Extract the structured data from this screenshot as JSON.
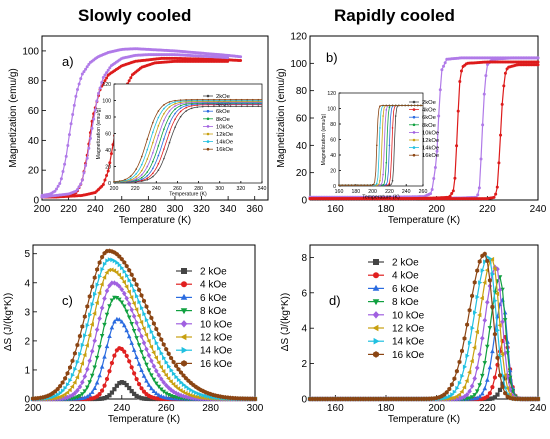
{
  "column_titles": {
    "left": "Slowly cooled",
    "right": "Rapidly cooled"
  },
  "legend_markers": [
    "square",
    "circle",
    "triangle-up",
    "triangle-down",
    "diamond",
    "triangle-left",
    "triangle-right",
    "hexagon"
  ],
  "chart_data": [
    {
      "panel_label": "a)",
      "type": "line",
      "xlabel": "Temperature (K)",
      "ylabel": "Magnetization (emu/g)",
      "xlim": [
        200,
        370
      ],
      "ylim": [
        0,
        110
      ],
      "xticks": [
        200,
        220,
        240,
        260,
        280,
        300,
        320,
        340,
        360
      ],
      "yticks": [
        0,
        20,
        40,
        60,
        80,
        100
      ],
      "grid": false,
      "series": [
        {
          "color": "#dd1b1b",
          "marker": "circle",
          "x": [
            200,
            210,
            220,
            226,
            230,
            234,
            238,
            244,
            250,
            260,
            270,
            280,
            290,
            300,
            320,
            340,
            350
          ],
          "y": [
            2,
            2.5,
            3,
            5,
            12,
            30,
            55,
            75,
            84,
            90,
            93,
            94,
            95,
            95,
            94.5,
            94,
            93.5
          ]
        },
        {
          "color": "#dd1b1b",
          "marker": "circle",
          "x": [
            200,
            210,
            220,
            230,
            240,
            246,
            250,
            254,
            258,
            262,
            268,
            275,
            285,
            300,
            320,
            340
          ],
          "y": [
            2,
            2,
            2.5,
            3,
            5,
            10,
            20,
            40,
            60,
            74,
            84,
            89,
            92,
            93,
            93,
            93
          ]
        },
        {
          "color": "#b07ae8",
          "marker": "circle",
          "x": [
            200,
            206,
            210,
            214,
            218,
            222,
            226,
            230,
            236,
            242,
            250,
            260,
            270,
            280,
            300,
            320,
            340,
            350
          ],
          "y": [
            3,
            4,
            6,
            12,
            28,
            52,
            72,
            84,
            92,
            96,
            99,
            101,
            101.5,
            101,
            100,
            98.5,
            97,
            96
          ]
        },
        {
          "color": "#b07ae8",
          "marker": "circle",
          "x": [
            200,
            210,
            220,
            226,
            230,
            234,
            238,
            242,
            246,
            252,
            260,
            270,
            280,
            300,
            320,
            340
          ],
          "y": [
            2,
            3,
            4,
            6,
            12,
            28,
            50,
            70,
            82,
            90,
            95,
            97,
            97.5,
            97.5,
            96.5,
            95.5
          ]
        }
      ],
      "inset": {
        "type": "line",
        "xlabel": "Temperature (K)",
        "ylabel": "Magnetization (emu/g)",
        "xlim": [
          200,
          340
        ],
        "ylim": [
          0,
          120
        ],
        "xticks": [
          200,
          220,
          240,
          260,
          280,
          300,
          320,
          340
        ],
        "yticks": [
          0,
          20,
          40,
          60,
          80,
          100,
          120
        ],
        "legend": [
          "2kOe",
          "4kOe",
          "6kOe",
          "8kOe",
          "10kOe",
          "12kOe",
          "14kOe",
          "16kOe"
        ],
        "colors": [
          "#444444",
          "#e02020",
          "#2a6be0",
          "#10a040",
          "#a060e0",
          "#c8a010",
          "#20c0e0",
          "#8b4513"
        ],
        "transition_midpoints": [
          252,
          249,
          246,
          243,
          240,
          237,
          234,
          231
        ],
        "plateau": [
          93,
          95,
          96,
          97,
          98,
          99,
          100,
          101
        ]
      }
    },
    {
      "panel_label": "b)",
      "type": "line",
      "xlabel": "Temperature (K)",
      "ylabel": "Magnetization (emu/g)",
      "xlim": [
        150,
        240
      ],
      "ylim": [
        0,
        120
      ],
      "xticks": [
        160,
        180,
        200,
        220,
        240
      ],
      "yticks": [
        0,
        20,
        40,
        60,
        80,
        100,
        120
      ],
      "grid": false,
      "series": [
        {
          "color": "#b07ae8",
          "marker": "circle",
          "x": [
            150,
            160,
            180,
            195,
            198,
            200,
            201,
            202,
            204,
            210,
            220,
            230,
            240
          ],
          "y": [
            2,
            2,
            2,
            2.5,
            5,
            30,
            70,
            95,
            103,
            104,
            104,
            104,
            104
          ]
        },
        {
          "color": "#b07ae8",
          "marker": "circle",
          "x": [
            150,
            170,
            190,
            210,
            216,
            217,
            218,
            219,
            220,
            222,
            230,
            240
          ],
          "y": [
            1,
            1,
            1,
            1.5,
            2,
            10,
            50,
            85,
            99,
            103,
            104,
            104
          ]
        },
        {
          "color": "#dd1b1b",
          "marker": "circle",
          "x": [
            150,
            170,
            190,
            200,
            205,
            207,
            208,
            209,
            210,
            212,
            220,
            230,
            240
          ],
          "y": [
            1,
            1,
            1,
            1.5,
            2,
            8,
            45,
            85,
            97,
            100,
            101,
            101,
            101
          ]
        },
        {
          "color": "#dd1b1b",
          "marker": "circle",
          "x": [
            150,
            170,
            190,
            210,
            220,
            223,
            224,
            225,
            226,
            227,
            228,
            232,
            240
          ],
          "y": [
            1,
            1,
            1,
            1,
            1,
            2,
            10,
            40,
            75,
            92,
            97,
            99,
            99
          ]
        }
      ],
      "inset": {
        "type": "line",
        "xlabel": "Temperature (K)",
        "ylabel": "Magnetization (emu/g)",
        "xlim": [
          160,
          260
        ],
        "ylim": [
          0,
          120
        ],
        "xticks": [
          160,
          180,
          200,
          220,
          240,
          260
        ],
        "yticks": [
          0,
          20,
          40,
          60,
          80,
          100,
          120
        ],
        "legend": [
          "2kOe",
          "4kOe",
          "6kOe",
          "8kOe",
          "10kOe",
          "12kOe",
          "14kOe",
          "16kOe"
        ],
        "colors": [
          "#444444",
          "#e02020",
          "#2a6be0",
          "#10a040",
          "#a060e0",
          "#c8a010",
          "#20c0e0",
          "#8b4513"
        ],
        "transition_midpoints": [
          226,
          223,
          220,
          217,
          214,
          211,
          208,
          205
        ],
        "plateau": [
          104,
          104,
          104,
          104,
          104,
          104,
          104,
          104
        ]
      }
    },
    {
      "panel_label": "c)",
      "type": "line",
      "xlabel": "Temperature (K)",
      "ylabel": "ΔS (J/(kg*K))",
      "xlim": [
        200,
        300
      ],
      "ylim": [
        0,
        5.3
      ],
      "xticks": [
        200,
        220,
        240,
        260,
        280,
        300
      ],
      "yticks": [
        0,
        1,
        2,
        3,
        4,
        5
      ],
      "grid": false,
      "legend": [
        "2 kOe",
        "4 kOe",
        "6 kOe",
        "8 kOe",
        "10 kOe",
        "12 kOe",
        "14 kOe",
        "16 kOe"
      ],
      "colors": [
        "#444444",
        "#e02020",
        "#2a6be0",
        "#10a040",
        "#a060e0",
        "#c8a010",
        "#20c0e0",
        "#8b4513"
      ],
      "peak_T": [
        240,
        239,
        238,
        237,
        236,
        235,
        234.5,
        234
      ],
      "peak_dS": [
        0.58,
        1.75,
        2.75,
        3.5,
        4.0,
        4.45,
        4.8,
        5.1
      ]
    },
    {
      "panel_label": "d)",
      "type": "line",
      "xlabel": "Temperature (K)",
      "ylabel": "ΔS (J/(kg*K))",
      "xlim": [
        150,
        240
      ],
      "ylim": [
        0,
        8.7
      ],
      "xticks": [
        160,
        180,
        200,
        220,
        240
      ],
      "yticks": [
        0,
        2,
        4,
        6,
        8
      ],
      "grid": false,
      "legend": [
        "2 kOe",
        "4 kOe",
        "6 kOe",
        "8 kOe",
        "10 kOe",
        "12 kOe",
        "14 kOe",
        "16 kOe"
      ],
      "colors": [
        "#444444",
        "#e02020",
        "#2a6be0",
        "#10a040",
        "#a060e0",
        "#c8a010",
        "#20c0e0",
        "#8b4513"
      ],
      "peak_T": [
        228,
        227,
        226,
        225,
        223.5,
        222,
        220.5,
        219
      ],
      "peak_dS": [
        1.3,
        3.5,
        5.6,
        6.9,
        7.5,
        7.9,
        8.05,
        8.2
      ]
    }
  ]
}
